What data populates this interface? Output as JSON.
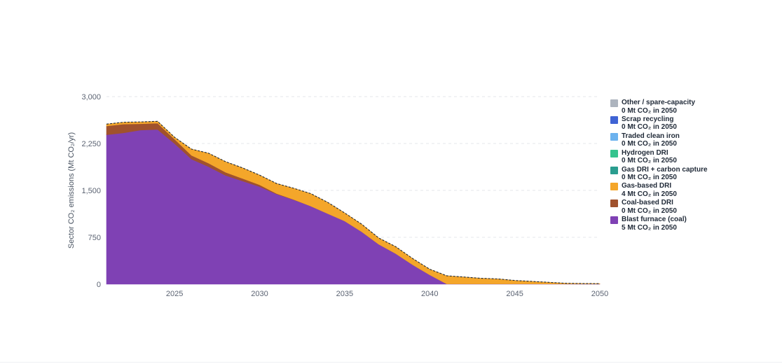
{
  "chart_data": {
    "type": "area",
    "stacked": true,
    "ylabel": "Sector CO₂ emissions (Mt CO₂/yr)",
    "xlabel": "",
    "xlim": [
      2021,
      2050
    ],
    "ylim": [
      0,
      3000
    ],
    "x_ticks": [
      "2025",
      "2030",
      "2035",
      "2040",
      "2045",
      "2050"
    ],
    "x_tick_values": [
      2025,
      2030,
      2035,
      2040,
      2045,
      2050
    ],
    "y_ticks": [
      "0",
      "750",
      "1,500",
      "2,250",
      "3,000"
    ],
    "y_tick_values": [
      0,
      750,
      1500,
      2250,
      3000
    ],
    "grid": "horizontal dashed",
    "legend_position": "right",
    "total_line": "dashed",
    "x": [
      2021,
      2022,
      2023,
      2024,
      2025,
      2026,
      2027,
      2028,
      2029,
      2030,
      2031,
      2032,
      2033,
      2034,
      2035,
      2036,
      2037,
      2038,
      2039,
      2040,
      2041,
      2042,
      2043,
      2044,
      2045,
      2046,
      2047,
      2048,
      2049,
      2050
    ],
    "series": [
      {
        "name": "Blast furnace (coal)",
        "color": "#7f41b4",
        "legend_sub": "5 Mt CO₂ in 2050",
        "values": [
          2390,
          2420,
          2465,
          2475,
          2250,
          2000,
          1880,
          1740,
          1650,
          1560,
          1440,
          1350,
          1250,
          1130,
          1010,
          840,
          640,
          490,
          310,
          150,
          5,
          5,
          5,
          5,
          5,
          5,
          5,
          5,
          5,
          5
        ]
      },
      {
        "name": "Coal-based DRI",
        "color": "#a0522d",
        "legend_sub": "0 Mt CO₂ in 2050",
        "values": [
          140,
          140,
          100,
          100,
          70,
          60,
          55,
          50,
          40,
          30,
          10,
          5,
          0,
          0,
          0,
          0,
          0,
          0,
          0,
          0,
          0,
          0,
          0,
          0,
          0,
          0,
          0,
          0,
          0,
          0
        ]
      },
      {
        "name": "Gas-based DRI",
        "color": "#f4a62a",
        "legend_sub": "4 Mt CO₂ in 2050",
        "values": [
          30,
          30,
          30,
          30,
          30,
          100,
          160,
          170,
          170,
          155,
          160,
          180,
          200,
          180,
          130,
          120,
          100,
          110,
          100,
          90,
          130,
          110,
          90,
          80,
          55,
          40,
          25,
          10,
          6,
          4
        ]
      },
      {
        "name": "Gas DRI + carbon capture",
        "color": "#2a9d8f",
        "legend_sub": "0 Mt CO₂ in 2050",
        "values": [
          0,
          0,
          0,
          0,
          0,
          0,
          0,
          0,
          0,
          0,
          0,
          0,
          0,
          0,
          0,
          0,
          0,
          0,
          0,
          0,
          0,
          0,
          0,
          0,
          0,
          0,
          0,
          0,
          0,
          0
        ]
      },
      {
        "name": "Hydrogen DRI",
        "color": "#35c48e",
        "legend_sub": "0 Mt CO₂ in 2050",
        "values": [
          0,
          0,
          0,
          0,
          0,
          0,
          0,
          0,
          0,
          0,
          0,
          0,
          0,
          0,
          0,
          0,
          0,
          0,
          0,
          0,
          0,
          0,
          0,
          0,
          0,
          0,
          0,
          0,
          0,
          0
        ]
      },
      {
        "name": "Traded clean iron",
        "color": "#6cb2ee",
        "legend_sub": "0 Mt CO₂ in 2050",
        "values": [
          0,
          0,
          0,
          0,
          0,
          0,
          0,
          0,
          0,
          0,
          0,
          0,
          0,
          0,
          0,
          0,
          0,
          0,
          0,
          0,
          0,
          0,
          0,
          0,
          0,
          0,
          0,
          0,
          0,
          0
        ]
      },
      {
        "name": "Scrap recycling",
        "color": "#3f63d4",
        "legend_sub": "0 Mt CO₂ in 2050",
        "values": [
          0,
          0,
          0,
          0,
          0,
          0,
          0,
          0,
          0,
          0,
          0,
          0,
          0,
          0,
          0,
          0,
          0,
          0,
          0,
          0,
          0,
          0,
          0,
          0,
          0,
          0,
          0,
          0,
          0,
          0
        ]
      },
      {
        "name": "Other / spare-capacity",
        "color": "#adb4be",
        "legend_sub": "0 Mt CO₂ in 2050",
        "values": [
          0,
          0,
          0,
          0,
          0,
          0,
          0,
          0,
          0,
          0,
          0,
          0,
          0,
          0,
          0,
          0,
          0,
          0,
          0,
          0,
          0,
          0,
          0,
          0,
          0,
          0,
          0,
          0,
          0,
          0
        ]
      }
    ]
  }
}
